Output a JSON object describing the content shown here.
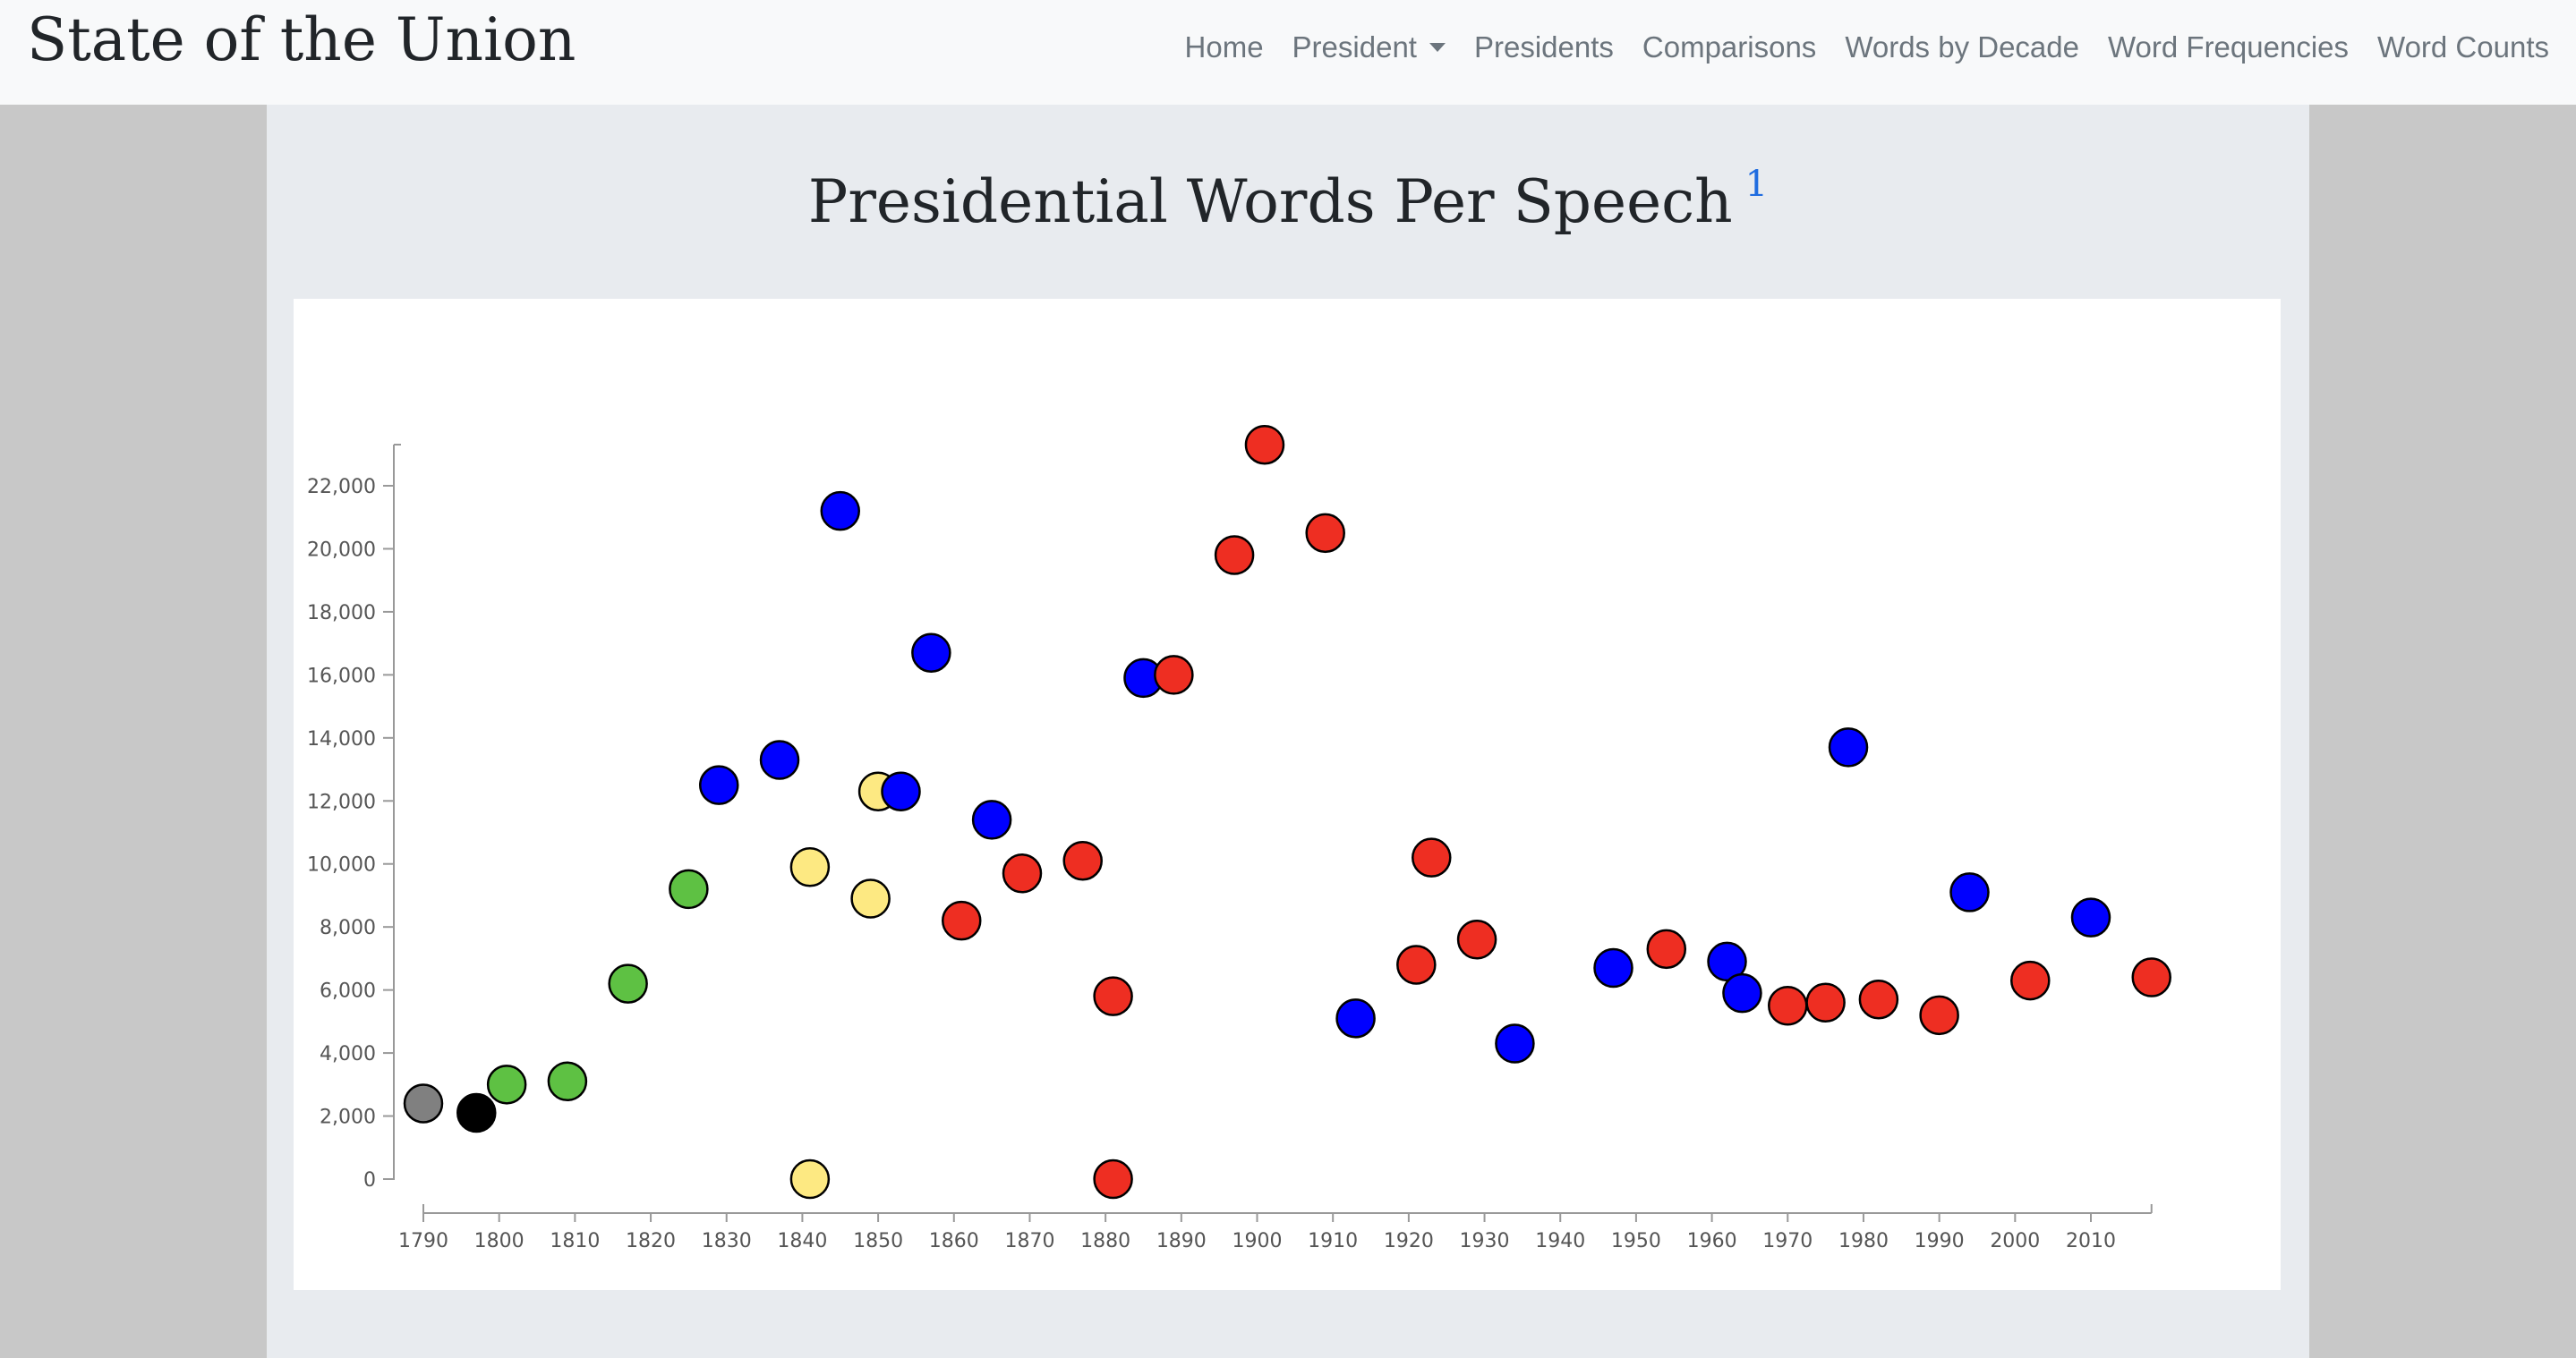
{
  "navbar": {
    "brand": "State of the Union",
    "links": {
      "home": "Home",
      "president": "President",
      "presidents": "Presidents",
      "comparisons": "Comparisons",
      "words_by_decade": "Words by Decade",
      "word_frequencies": "Word Frequencies",
      "word_counts": "Word Counts"
    }
  },
  "page": {
    "title": "Presidential Words Per Speech",
    "footnote_ref": "1"
  },
  "colors": {
    "grey": "#808080",
    "black": "#000000",
    "green": "#5ec143",
    "yellow": "#fde982",
    "blue": "#0000ff",
    "red": "#ee2e22"
  },
  "chart_data": {
    "type": "scatter",
    "title": "",
    "xlabel": "",
    "ylabel": "",
    "xlim": [
      1786,
      2019
    ],
    "ylim": [
      -1000,
      23500
    ],
    "xticks": [
      1790,
      1800,
      1810,
      1820,
      1830,
      1840,
      1850,
      1860,
      1870,
      1880,
      1890,
      1900,
      1910,
      1920,
      1930,
      1940,
      1950,
      1960,
      1970,
      1980,
      1990,
      2000,
      2010
    ],
    "yticks": [
      0,
      2000,
      4000,
      6000,
      8000,
      10000,
      12000,
      14000,
      16000,
      18000,
      20000,
      22000
    ],
    "grid": false,
    "points": [
      {
        "x": 1790,
        "y": 2400,
        "color": "grey"
      },
      {
        "x": 1797,
        "y": 2100,
        "color": "black"
      },
      {
        "x": 1801,
        "y": 3000,
        "color": "green"
      },
      {
        "x": 1809,
        "y": 3100,
        "color": "green"
      },
      {
        "x": 1817,
        "y": 6200,
        "color": "green"
      },
      {
        "x": 1825,
        "y": 9200,
        "color": "green"
      },
      {
        "x": 1829,
        "y": 12500,
        "color": "blue"
      },
      {
        "x": 1837,
        "y": 13300,
        "color": "blue"
      },
      {
        "x": 1841,
        "y": 9900,
        "color": "yellow"
      },
      {
        "x": 1841,
        "y": 0,
        "color": "yellow"
      },
      {
        "x": 1845,
        "y": 21200,
        "color": "blue"
      },
      {
        "x": 1849,
        "y": 8900,
        "color": "yellow"
      },
      {
        "x": 1850,
        "y": 12300,
        "color": "yellow"
      },
      {
        "x": 1853,
        "y": 12300,
        "color": "blue"
      },
      {
        "x": 1857,
        "y": 16700,
        "color": "blue"
      },
      {
        "x": 1861,
        "y": 8200,
        "color": "red"
      },
      {
        "x": 1865,
        "y": 11400,
        "color": "blue"
      },
      {
        "x": 1869,
        "y": 9700,
        "color": "red"
      },
      {
        "x": 1877,
        "y": 10100,
        "color": "red"
      },
      {
        "x": 1881,
        "y": 5800,
        "color": "red"
      },
      {
        "x": 1881,
        "y": 0,
        "color": "red"
      },
      {
        "x": 1885,
        "y": 15900,
        "color": "blue"
      },
      {
        "x": 1889,
        "y": 16000,
        "color": "red"
      },
      {
        "x": 1897,
        "y": 19800,
        "color": "red"
      },
      {
        "x": 1901,
        "y": 23300,
        "color": "red"
      },
      {
        "x": 1909,
        "y": 20500,
        "color": "red"
      },
      {
        "x": 1913,
        "y": 5100,
        "color": "blue"
      },
      {
        "x": 1921,
        "y": 6800,
        "color": "red"
      },
      {
        "x": 1923,
        "y": 10200,
        "color": "red"
      },
      {
        "x": 1929,
        "y": 7600,
        "color": "red"
      },
      {
        "x": 1934,
        "y": 4300,
        "color": "blue"
      },
      {
        "x": 1947,
        "y": 6700,
        "color": "blue"
      },
      {
        "x": 1954,
        "y": 7300,
        "color": "red"
      },
      {
        "x": 1962,
        "y": 6900,
        "color": "blue"
      },
      {
        "x": 1964,
        "y": 5900,
        "color": "blue"
      },
      {
        "x": 1970,
        "y": 5500,
        "color": "red"
      },
      {
        "x": 1975,
        "y": 5600,
        "color": "red"
      },
      {
        "x": 1978,
        "y": 13700,
        "color": "blue"
      },
      {
        "x": 1982,
        "y": 5700,
        "color": "red"
      },
      {
        "x": 1990,
        "y": 5200,
        "color": "red"
      },
      {
        "x": 1994,
        "y": 9100,
        "color": "blue"
      },
      {
        "x": 2002,
        "y": 6300,
        "color": "red"
      },
      {
        "x": 2010,
        "y": 8300,
        "color": "blue"
      },
      {
        "x": 2018,
        "y": 6400,
        "color": "red"
      }
    ]
  }
}
